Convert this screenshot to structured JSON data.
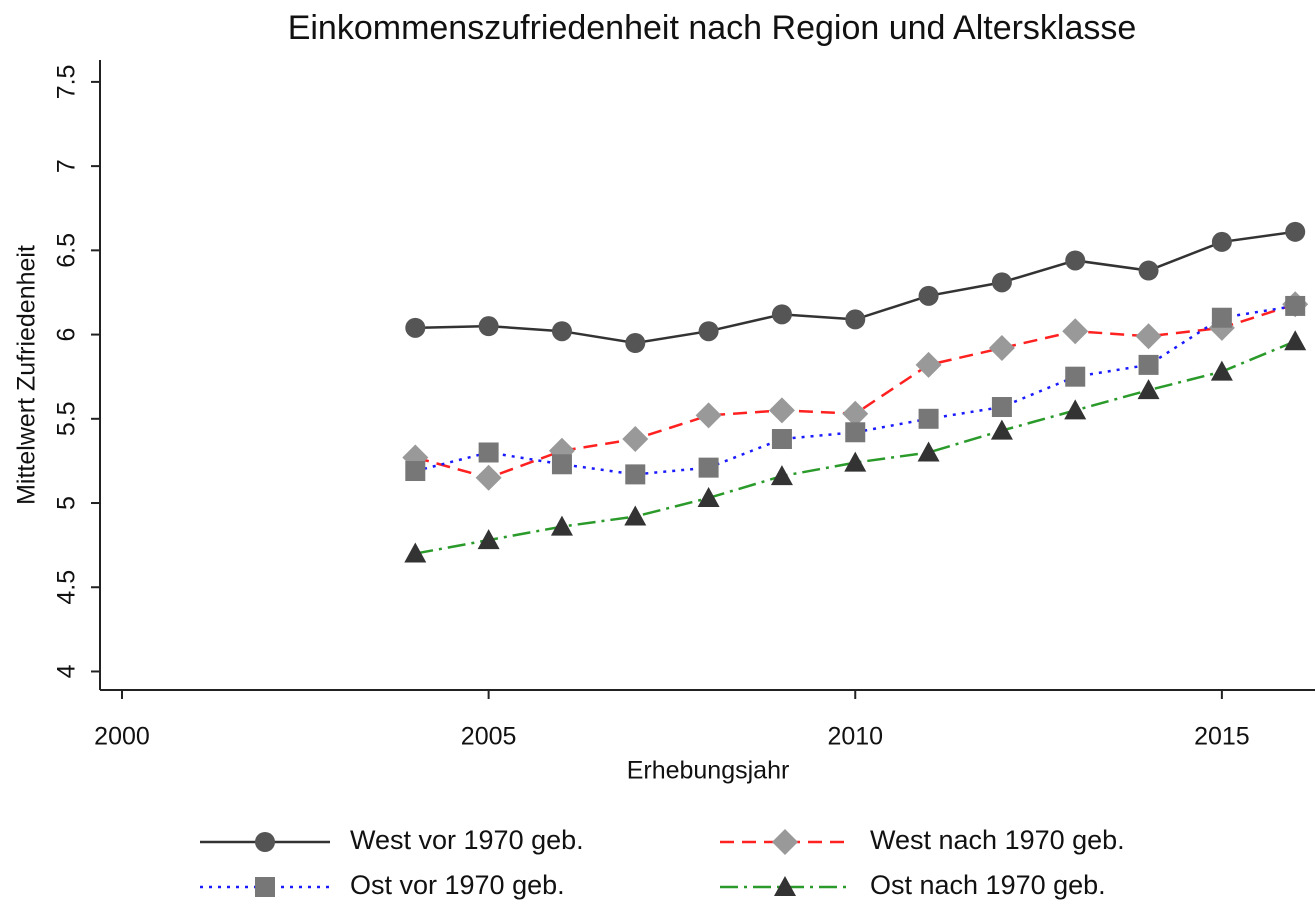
{
  "chart_data": {
    "type": "line",
    "title": "Einkommenszufriedenheit nach Region und Altersklasse",
    "x_label": "Erhebungsjahr",
    "y_label": "Mittelwert Zufriedenheit",
    "x": [
      2004,
      2005,
      2006,
      2007,
      2008,
      2009,
      2010,
      2011,
      2012,
      2013,
      2014,
      2015,
      2016
    ],
    "series": [
      {
        "name": "West vor 1970 geb.",
        "color": "#333333",
        "marker_color": "#555555",
        "marker": "circle",
        "dash": "solid",
        "values": [
          6.04,
          6.05,
          6.02,
          5.95,
          6.02,
          6.12,
          6.09,
          6.23,
          6.31,
          6.44,
          6.38,
          6.55,
          6.61
        ]
      },
      {
        "name": "West nach 1970 geb.",
        "color": "#ff2020",
        "marker_color": "#999999",
        "marker": "diamond",
        "dash": "dashed",
        "values": [
          5.27,
          5.15,
          5.31,
          5.38,
          5.52,
          5.55,
          5.53,
          5.82,
          5.92,
          6.02,
          5.99,
          6.04,
          6.18
        ]
      },
      {
        "name": "Ost vor 1970 geb.",
        "color": "#1a1aff",
        "marker_color": "#777777",
        "marker": "square",
        "dash": "dotted",
        "values": [
          5.19,
          5.3,
          5.23,
          5.17,
          5.21,
          5.38,
          5.42,
          5.5,
          5.57,
          5.75,
          5.82,
          6.1,
          6.17
        ]
      },
      {
        "name": "Ost nach 1970 geb.",
        "color": "#2a9a2a",
        "marker_color": "#333333",
        "marker": "triangle",
        "dash": "dashdot",
        "values": [
          4.7,
          4.78,
          4.86,
          4.92,
          5.03,
          5.16,
          5.24,
          5.3,
          5.43,
          5.55,
          5.67,
          5.78,
          5.96
        ]
      }
    ],
    "xlim": [
      1999.7,
      2016.27
    ],
    "xticks": [
      2000,
      2005,
      2010,
      2015
    ],
    "ylim": [
      3.89,
      7.63
    ],
    "yticks": [
      4,
      4.5,
      5,
      5.5,
      6,
      6.5,
      7,
      7.5
    ],
    "grid": false,
    "legend": "bottom"
  }
}
